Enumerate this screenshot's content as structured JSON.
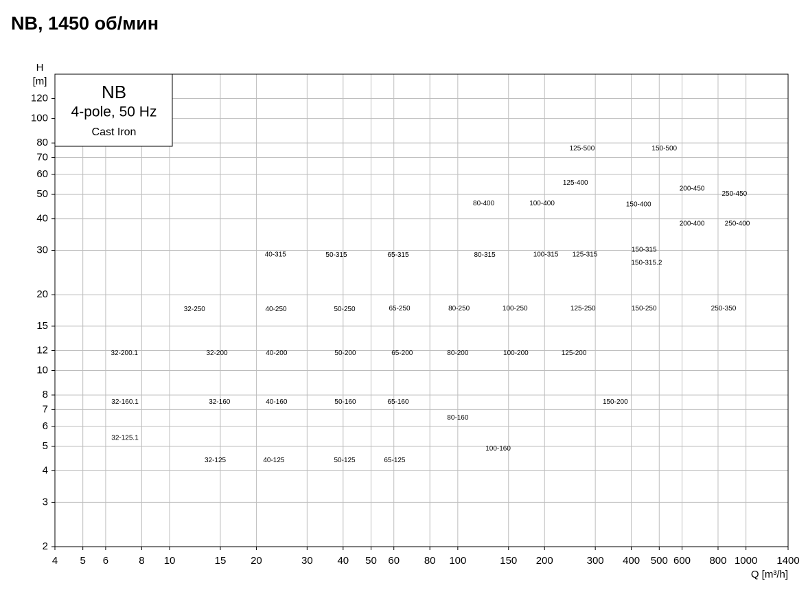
{
  "chart_data": {
    "type": "pump-chart",
    "title": "NB, 1450 об/мин",
    "legend_box": {
      "title": "NB",
      "line1": "4-pole, 50 Hz",
      "line2": "Cast Iron"
    },
    "y_axis_label": "H",
    "y_axis_unit": "[m]",
    "x_axis_label": "Q [m³/h]",
    "log_x": true,
    "log_y": true,
    "grid": true,
    "xlim": [
      4,
      1400
    ],
    "ylim": [
      2,
      150
    ],
    "xticks": [
      4,
      5,
      6,
      8,
      10,
      15,
      20,
      30,
      40,
      50,
      60,
      80,
      100,
      150,
      200,
      300,
      400,
      500,
      600,
      800,
      1000,
      1400
    ],
    "yticks": [
      2,
      3,
      4,
      5,
      6,
      7,
      8,
      10,
      12,
      15,
      20,
      30,
      40,
      50,
      60,
      70,
      80,
      100,
      120
    ],
    "regions": [
      {
        "name": "125-500",
        "q": 270,
        "h": 76
      },
      {
        "name": "150-500",
        "q": 521,
        "h": 76
      },
      {
        "name": "125-400",
        "q": 256,
        "h": 55.6
      },
      {
        "name": "80-400",
        "q": 123,
        "h": 46
      },
      {
        "name": "100-400",
        "q": 196,
        "h": 46
      },
      {
        "name": "200-450",
        "q": 650,
        "h": 52.6
      },
      {
        "name": "250-450",
        "q": 912,
        "h": 50.3
      },
      {
        "name": "150-400",
        "q": 424,
        "h": 45.5
      },
      {
        "name": "200-400",
        "q": 650,
        "h": 38.2
      },
      {
        "name": "250-400",
        "q": 933,
        "h": 38.2
      },
      {
        "name": "40-315",
        "q": 23.3,
        "h": 28.8
      },
      {
        "name": "50-315",
        "q": 37.9,
        "h": 28.7
      },
      {
        "name": "65-315",
        "q": 62.1,
        "h": 28.7
      },
      {
        "name": "80-315",
        "q": 124,
        "h": 28.7
      },
      {
        "name": "100-315",
        "q": 202,
        "h": 28.8
      },
      {
        "name": "125-315",
        "q": 276,
        "h": 28.8
      },
      {
        "name": "150-315",
        "q": 443,
        "h": 30.1
      },
      {
        "name": "150-315.2",
        "q": 452,
        "h": 26.7
      },
      {
        "name": "32-250",
        "q": 12.2,
        "h": 17.5
      },
      {
        "name": "40-250",
        "q": 23.4,
        "h": 17.5
      },
      {
        "name": "50-250",
        "q": 40.5,
        "h": 17.5
      },
      {
        "name": "65-250",
        "q": 62.8,
        "h": 17.6
      },
      {
        "name": "80-250",
        "q": 101,
        "h": 17.6
      },
      {
        "name": "100-250",
        "q": 158,
        "h": 17.6
      },
      {
        "name": "125-250",
        "q": 272,
        "h": 17.6
      },
      {
        "name": "150-250",
        "q": 443,
        "h": 17.6
      },
      {
        "name": "250-350",
        "q": 836,
        "h": 17.6
      },
      {
        "name": "32-200.1",
        "q": 6.97,
        "h": 11.7
      },
      {
        "name": "32-200",
        "q": 14.6,
        "h": 11.7
      },
      {
        "name": "40-200",
        "q": 23.5,
        "h": 11.7
      },
      {
        "name": "50-200",
        "q": 40.7,
        "h": 11.7
      },
      {
        "name": "65-200",
        "q": 64.1,
        "h": 11.7
      },
      {
        "name": "80-200",
        "q": 100,
        "h": 11.7
      },
      {
        "name": "100-200",
        "q": 159,
        "h": 11.7
      },
      {
        "name": "125-200",
        "q": 253,
        "h": 11.7
      },
      {
        "name": "150-200",
        "q": 352,
        "h": 7.5
      },
      {
        "name": "32-160.1",
        "q": 7.0,
        "h": 7.5
      },
      {
        "name": "32-160",
        "q": 14.9,
        "h": 7.5
      },
      {
        "name": "40-160",
        "q": 23.5,
        "h": 7.5
      },
      {
        "name": "50-160",
        "q": 40.7,
        "h": 7.5
      },
      {
        "name": "65-160",
        "q": 62.1,
        "h": 7.5
      },
      {
        "name": "80-160",
        "q": 100,
        "h": 6.5
      },
      {
        "name": "32-125.1",
        "q": 7.0,
        "h": 5.4
      },
      {
        "name": "32-125",
        "q": 14.4,
        "h": 4.4
      },
      {
        "name": "40-125",
        "q": 23.0,
        "h": 4.4
      },
      {
        "name": "50-125",
        "q": 40.5,
        "h": 4.4
      },
      {
        "name": "65-125",
        "q": 60.4,
        "h": 4.4
      },
      {
        "name": "100-160",
        "q": 138,
        "h": 4.9
      }
    ]
  }
}
